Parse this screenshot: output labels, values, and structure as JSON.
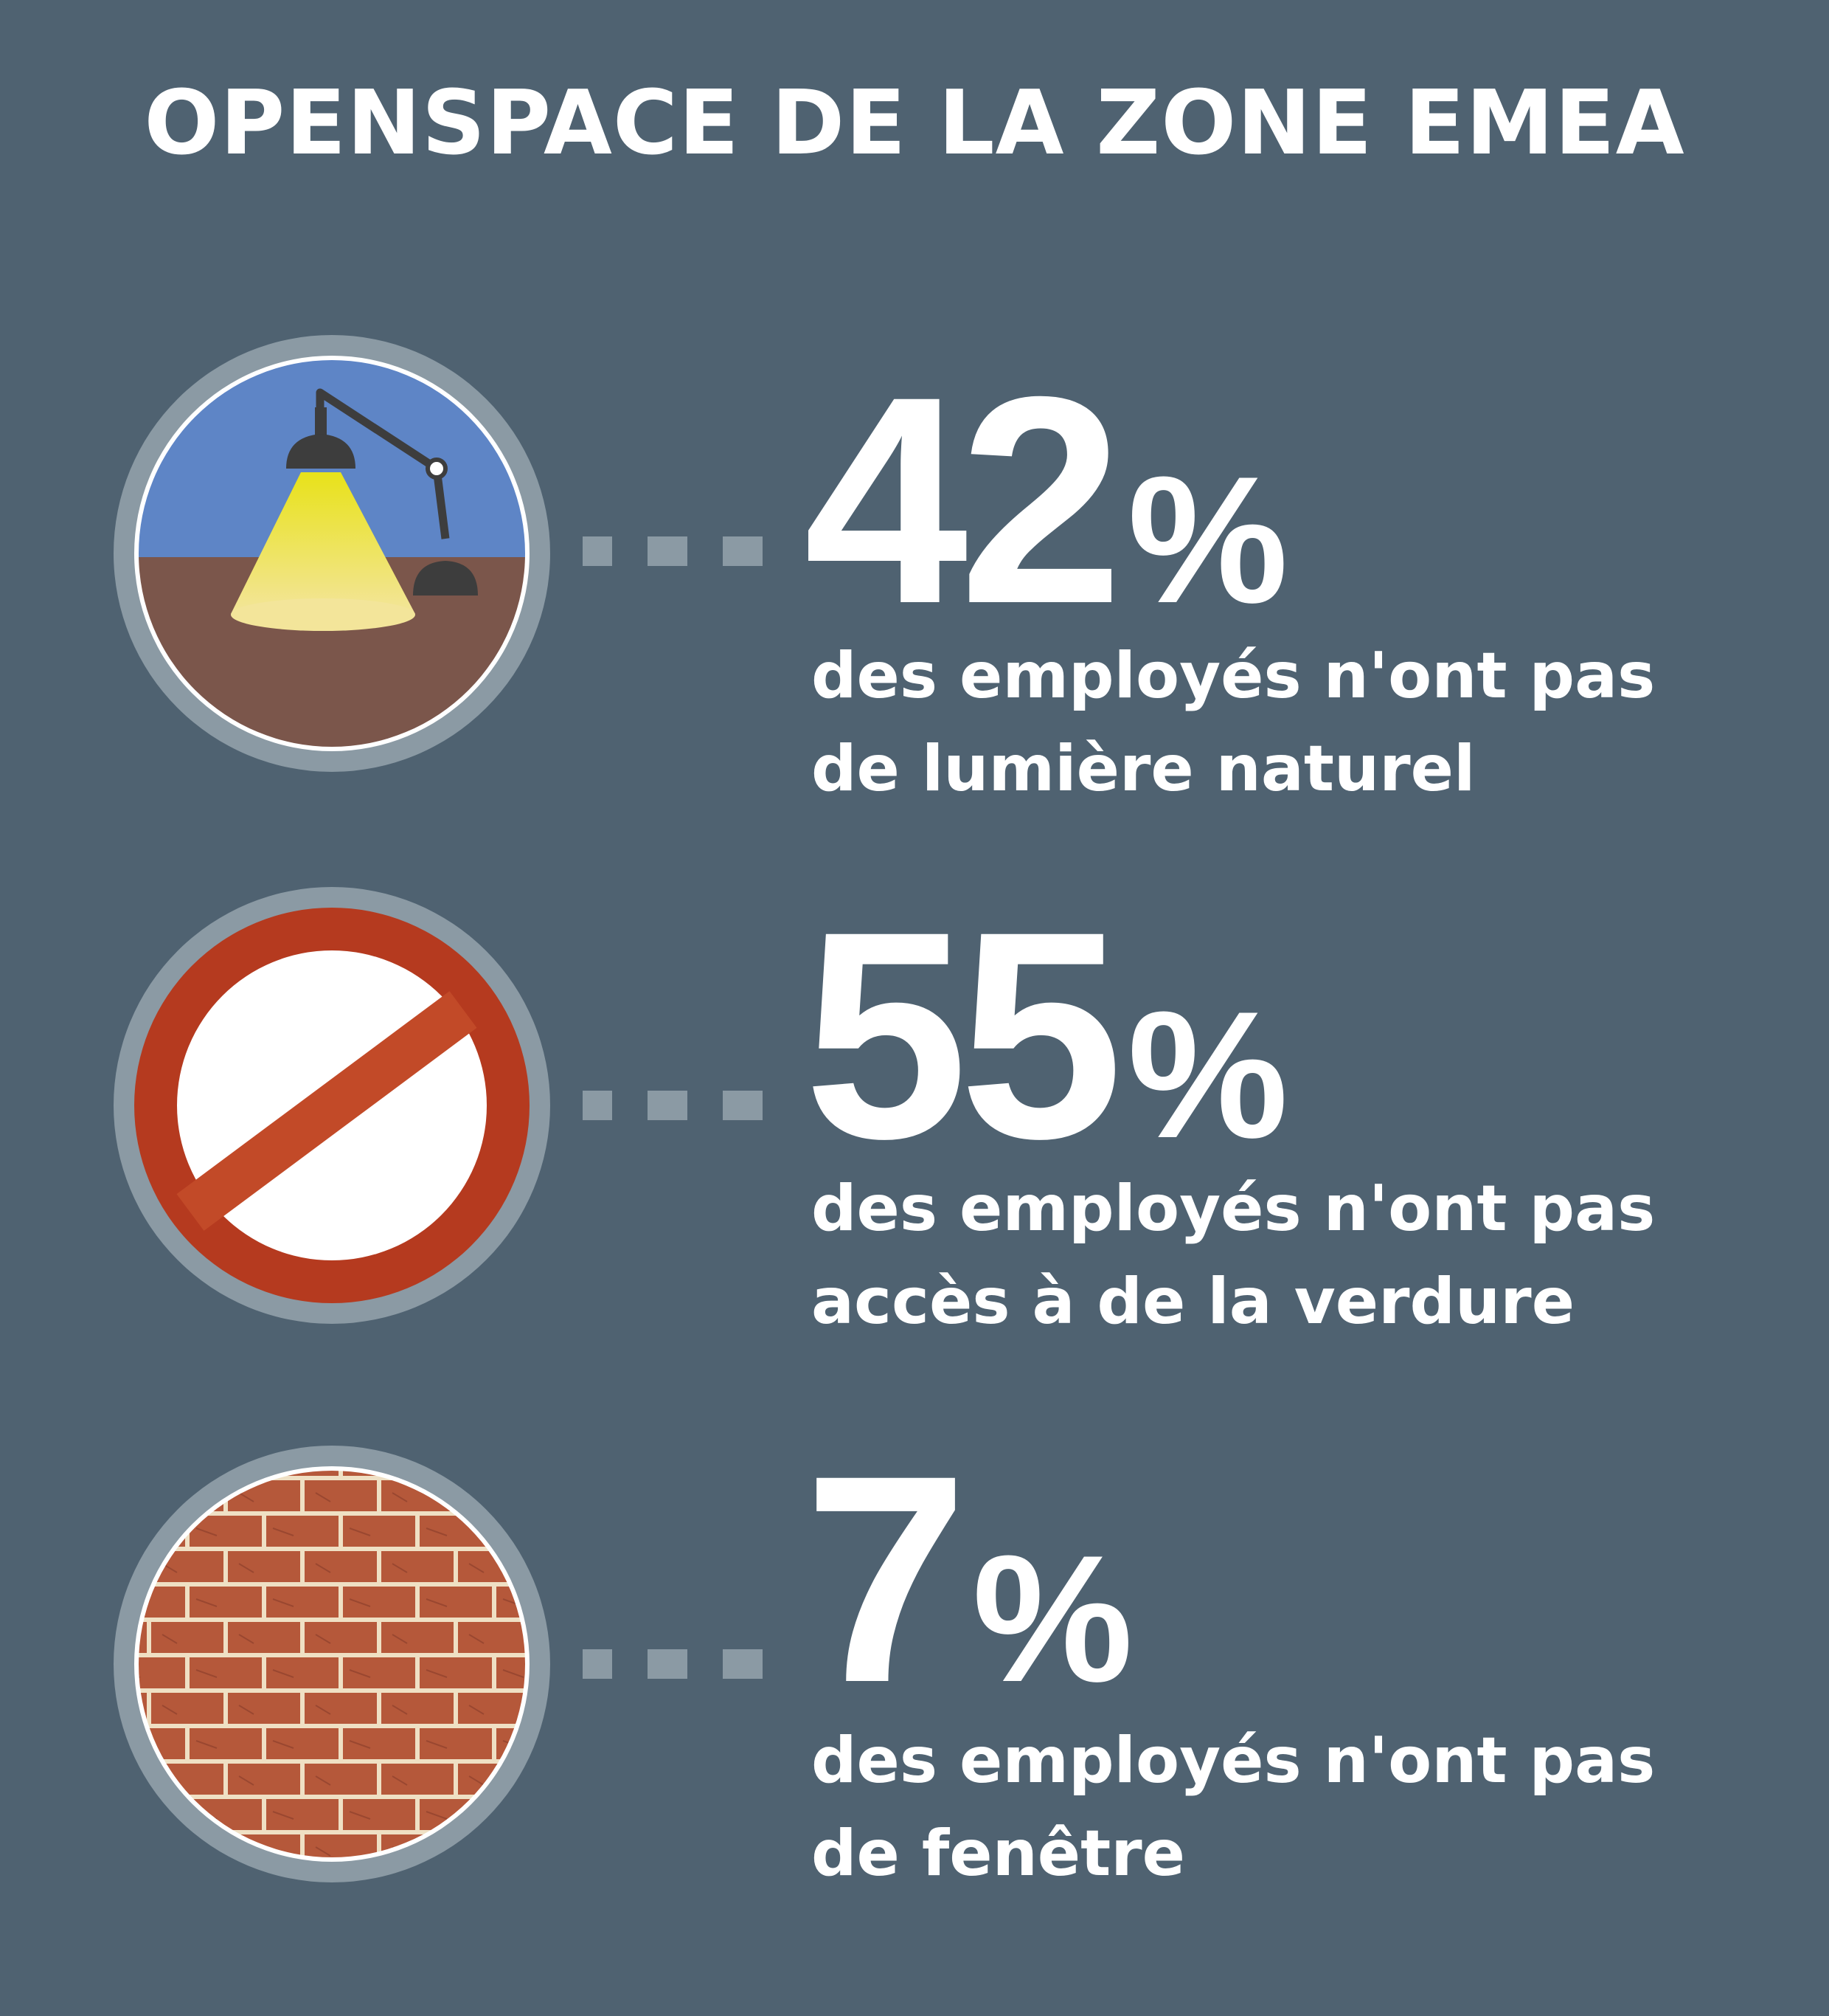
{
  "title": "OPENSPACE DE LA ZONE EMEA",
  "stats": [
    {
      "number": "42",
      "percent": "%",
      "line1": "des employés n'ont pas",
      "line2": "de lumière naturel",
      "icon": "desk-lamp-icon"
    },
    {
      "number": "55",
      "percent": "%",
      "line1": "des employés n'ont pas",
      "line2": "accès à de la verdure",
      "icon": "prohibited-icon"
    },
    {
      "number": "7",
      "percent": "%",
      "line1": "des employés n'ont pas",
      "line2": "de fenêtre",
      "icon": "brick-wall-icon"
    }
  ],
  "colors": {
    "background": "#4f6271",
    "ring": "#8b9aa4",
    "lamp_sky": "#5e85c6",
    "lamp_floor": "#7b564b",
    "prohibit_red": "#b53a1f",
    "brick": "#b5583a"
  }
}
